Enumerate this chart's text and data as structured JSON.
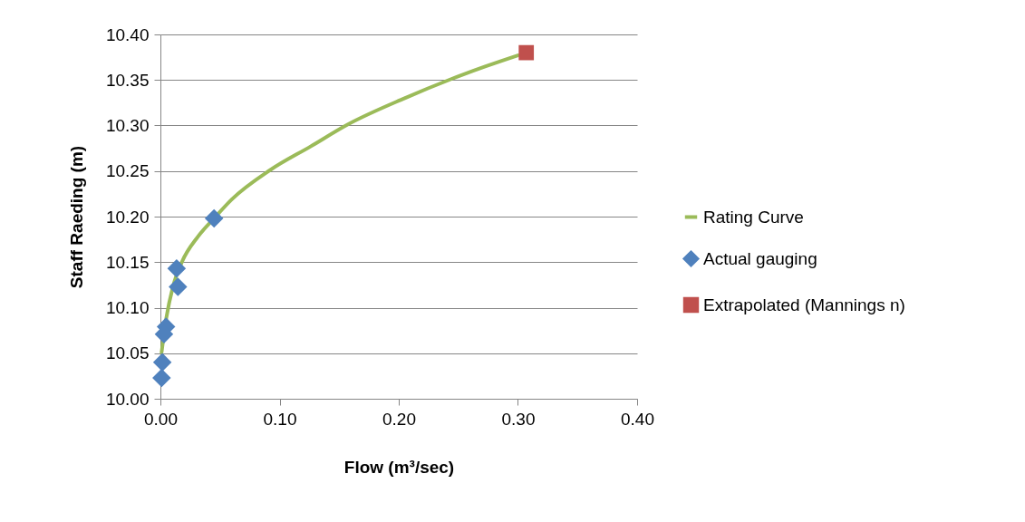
{
  "chart_data": {
    "type": "scatter",
    "xlabel": "Flow (m³/sec)",
    "ylabel": "Staff Raeding (m)",
    "xlim": [
      0,
      0.4
    ],
    "xticks": [
      {
        "value": 0,
        "label": "0.00"
      },
      {
        "value": 0.1,
        "label": "0.10"
      },
      {
        "value": 0.2,
        "label": "0.20"
      },
      {
        "value": 0.3,
        "label": "0.30"
      },
      {
        "value": 0.4,
        "label": "0.40"
      }
    ],
    "ylim": [
      10,
      10.4
    ],
    "yticks": [
      {
        "value": 10,
        "label": "10.00"
      },
      {
        "value": 10.05,
        "label": "10.05"
      },
      {
        "value": 10.1,
        "label": "10.10"
      },
      {
        "value": 10.15,
        "label": "10.15"
      },
      {
        "value": 10.2,
        "label": "10.20"
      },
      {
        "value": 10.25,
        "label": "10.25"
      },
      {
        "value": 10.3,
        "label": "10.30"
      },
      {
        "value": 10.35,
        "label": "10.35"
      },
      {
        "value": 10.4,
        "label": "10.40"
      }
    ],
    "grid": "y",
    "legend": "right",
    "series": [
      {
        "name": "Rating Curve",
        "type": "line",
        "color": "#9bbb59",
        "marker": "none",
        "line_style": "solid",
        "x": [
          0.001,
          0.005,
          0.0105,
          0.018,
          0.0315,
          0.045,
          0.06,
          0.092,
          0.126,
          0.157,
          0.205,
          0.244,
          0.273,
          0.3
        ],
        "values": [
          10.051,
          10.089,
          10.123,
          10.15,
          10.178,
          10.198,
          10.219,
          10.251,
          10.277,
          10.301,
          10.33,
          10.351,
          10.365,
          10.377
        ]
      },
      {
        "name": "Actual gauging",
        "color": "#4f81bd",
        "marker": "diamond",
        "x": [
          0.045,
          0.0136,
          0.0147,
          0.0047,
          0.003,
          0.0016,
          0.001
        ],
        "values": [
          10.198,
          10.143,
          10.123,
          10.079,
          10.071,
          10.04,
          10.023
        ]
      },
      {
        "name": "Extrapolated (Mannings n)",
        "color": "#c0504d",
        "marker": "square",
        "x": [
          0.307
        ],
        "values": [
          10.38
        ]
      }
    ]
  }
}
